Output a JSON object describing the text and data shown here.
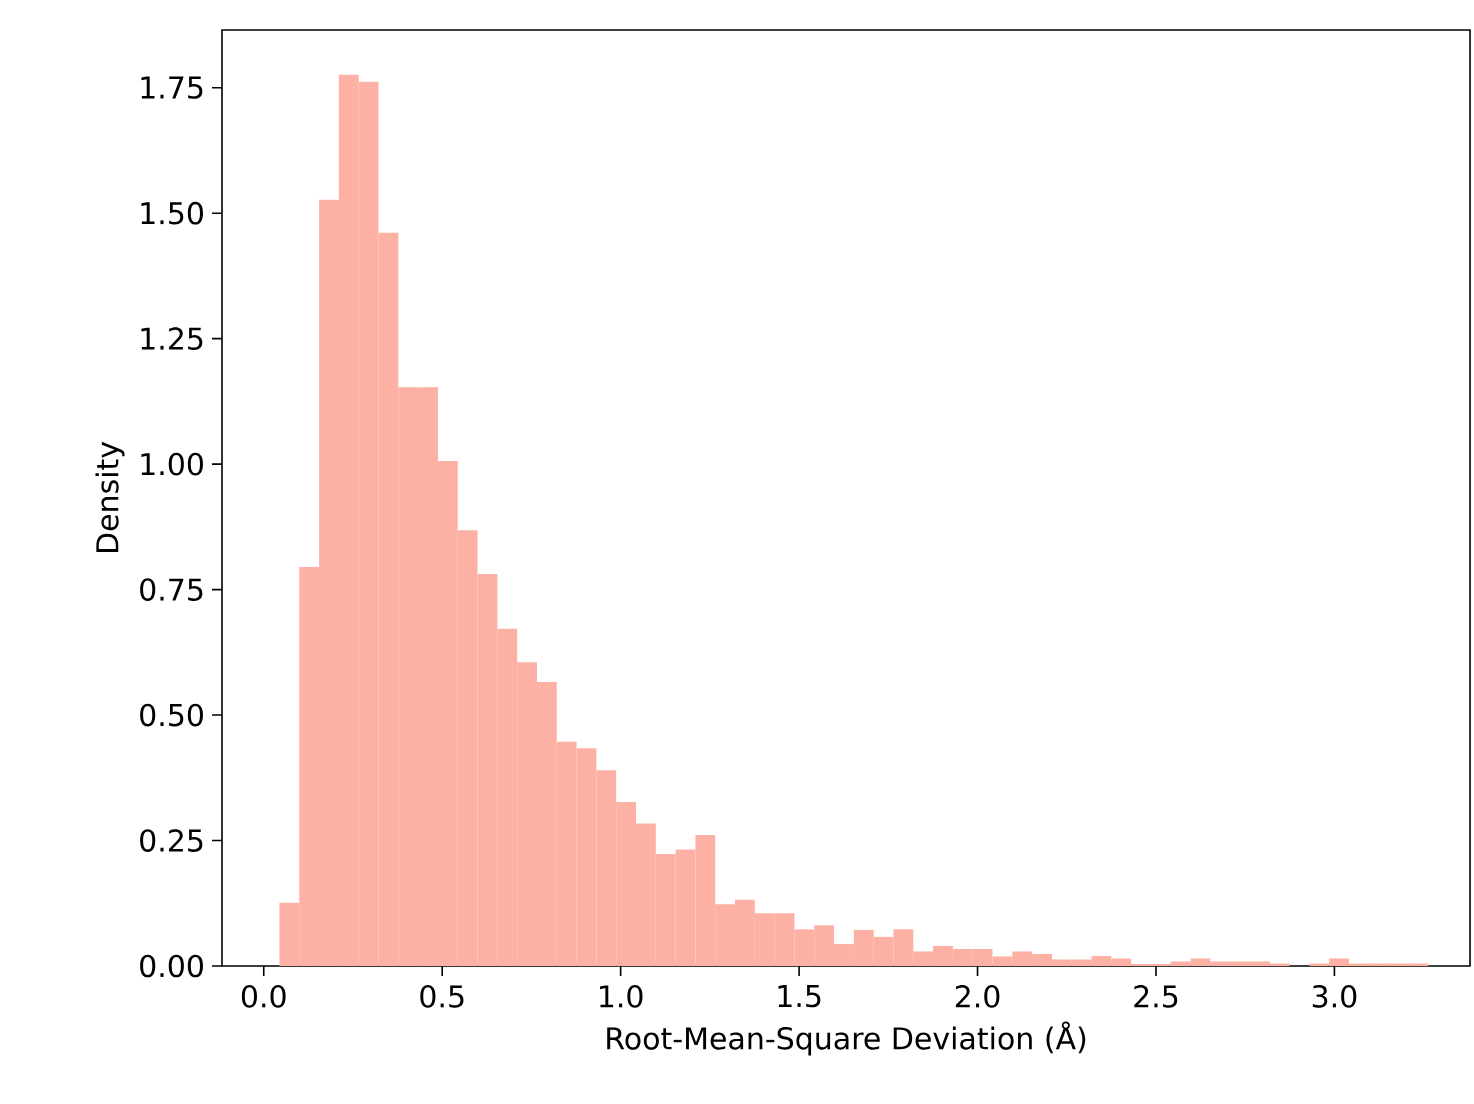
{
  "chart_data": {
    "type": "histogram",
    "xlabel": "Root-Mean-Square Deviation (Å)",
    "ylabel": "Density",
    "color": "#fdb0a4",
    "bins": [
      0.044,
      0.0995,
      0.155,
      0.2105,
      0.266,
      0.3215,
      0.377,
      0.4325,
      0.488,
      0.5435,
      0.599,
      0.6545,
      0.71,
      0.7655,
      0.821,
      0.8765,
      0.932,
      0.9875,
      1.043,
      1.0985,
      1.154,
      1.2095,
      1.265,
      1.3205,
      1.376,
      1.4315,
      1.487,
      1.5425,
      1.598,
      1.6535,
      1.709,
      1.7645,
      1.82,
      1.8755,
      1.931,
      1.9865,
      2.042,
      2.0975,
      2.153,
      2.2085,
      2.264,
      2.3195,
      2.375,
      2.4305,
      2.486,
      2.5415,
      2.597,
      2.6525,
      2.708,
      2.7635,
      2.819,
      2.8745,
      2.93,
      2.9855,
      3.041,
      3.0965,
      3.152,
      3.2075,
      3.263
    ],
    "values": [
      0.126,
      0.795,
      1.527,
      1.776,
      1.762,
      1.461,
      1.153,
      1.153,
      1.006,
      0.868,
      0.781,
      0.672,
      0.605,
      0.566,
      0.447,
      0.434,
      0.39,
      0.327,
      0.284,
      0.223,
      0.232,
      0.261,
      0.123,
      0.132,
      0.105,
      0.105,
      0.073,
      0.081,
      0.044,
      0.072,
      0.058,
      0.073,
      0.029,
      0.04,
      0.034,
      0.034,
      0.019,
      0.029,
      0.024,
      0.013,
      0.013,
      0.02,
      0.015,
      0.004,
      0.004,
      0.009,
      0.015,
      0.009,
      0.009,
      0.009,
      0.005,
      null,
      0.005,
      0.015,
      0.005,
      0.005,
      0.005,
      0.005
    ],
    "xlim": [
      -0.117,
      3.38
    ],
    "ylim": [
      0,
      1.865
    ],
    "xticks": [
      {
        "value": 0,
        "label": "0.0"
      },
      {
        "value": 0.5,
        "label": "0.5"
      },
      {
        "value": 1,
        "label": "1.0"
      },
      {
        "value": 1.5,
        "label": "1.5"
      },
      {
        "value": 2,
        "label": "2.0"
      },
      {
        "value": 2.5,
        "label": "2.5"
      },
      {
        "value": 3,
        "label": "3.0"
      }
    ],
    "yticks": [
      {
        "value": 0,
        "label": "0.00"
      },
      {
        "value": 0.25,
        "label": "0.25"
      },
      {
        "value": 0.5,
        "label": "0.50"
      },
      {
        "value": 0.75,
        "label": "0.75"
      },
      {
        "value": 1,
        "label": "1.00"
      },
      {
        "value": 1.25,
        "label": "1.25"
      },
      {
        "value": 1.5,
        "label": "1.50"
      },
      {
        "value": 1.75,
        "label": "1.75"
      }
    ]
  }
}
